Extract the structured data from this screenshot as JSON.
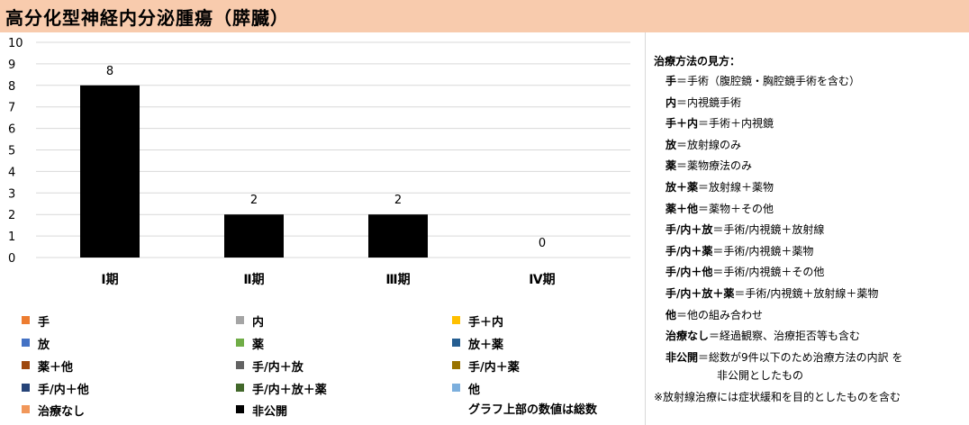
{
  "title": "高分化型神経内分泌腫瘍（膵臓）",
  "chart_data": {
    "type": "bar",
    "categories": [
      "Ⅰ期",
      "Ⅱ期",
      "Ⅲ期",
      "Ⅳ期"
    ],
    "values": [
      8,
      2,
      2,
      0
    ],
    "ylim": [
      0,
      10
    ],
    "yticks": [
      0,
      1,
      2,
      3,
      4,
      5,
      6,
      7,
      8,
      9,
      10
    ],
    "grid": true,
    "bar_color": "#000000",
    "legend_placement": "bottom"
  },
  "legend": [
    {
      "label": "手",
      "color": "#ed7d31"
    },
    {
      "label": "内",
      "color": "#a5a5a5"
    },
    {
      "label": "手＋内",
      "color": "#ffc000"
    },
    {
      "label": "放",
      "color": "#4472c4"
    },
    {
      "label": "薬",
      "color": "#70ad47"
    },
    {
      "label": "放＋薬",
      "color": "#255e91"
    },
    {
      "label": "薬＋他",
      "color": "#9e480e"
    },
    {
      "label": "手/内＋放",
      "color": "#636363"
    },
    {
      "label": "手/内＋薬",
      "color": "#997300"
    },
    {
      "label": "手/内＋他",
      "color": "#264478"
    },
    {
      "label": "手/内＋放＋薬",
      "color": "#43682b"
    },
    {
      "label": "他",
      "color": "#7cafdd"
    },
    {
      "label": "治療なし",
      "color": "#f1975a"
    },
    {
      "label": "非公開",
      "color": "#000000"
    }
  ],
  "legend_note": "グラフ上部の数値は総数",
  "notes": {
    "heading": "治療方法の見方：",
    "items": [
      {
        "key": "手",
        "desc": "＝手術（腹腔鏡・胸腔鏡手術を含む）"
      },
      {
        "key": "内",
        "desc": "＝内視鏡手術"
      },
      {
        "key": "手＋内",
        "desc": "＝手術＋内視鏡"
      },
      {
        "key": "放",
        "desc": "＝放射線のみ"
      },
      {
        "key": "薬",
        "desc": "＝薬物療法のみ"
      },
      {
        "key": "放＋薬",
        "desc": "＝放射線＋薬物"
      },
      {
        "key": "薬＋他",
        "desc": "＝薬物＋その他"
      },
      {
        "key": "手/内＋放",
        "desc": "＝手術/内視鏡＋放射線"
      },
      {
        "key": "手/内＋薬",
        "desc": "＝手術/内視鏡＋薬物"
      },
      {
        "key": "手/内＋他",
        "desc": "＝手術/内視鏡＋その他"
      },
      {
        "key": "手/内＋放＋薬",
        "desc": "＝手術/内視鏡＋放射線＋薬物"
      },
      {
        "key": "他",
        "desc": "＝他の組み合わせ"
      },
      {
        "key": "治療なし",
        "desc": "＝経過観察、治療拒否等も含む"
      },
      {
        "key": "非公開",
        "desc": "＝総数が9件以下のため治療方法の内訳 を"
      }
    ],
    "continuation": "非公開としたもの",
    "footnote": "※放射線治療には症状緩和を目的としたものを含む"
  }
}
